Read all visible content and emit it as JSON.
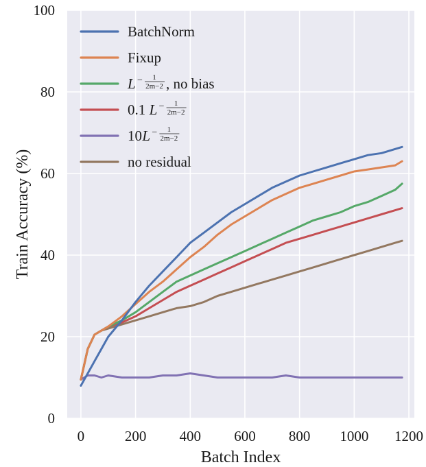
{
  "chart_data": {
    "type": "line",
    "title": "",
    "xlabel": "Batch Index",
    "ylabel": "Train Accuracy (%)",
    "xlim": [
      -50,
      1220
    ],
    "ylim": [
      0,
      100
    ],
    "x_ticks": [
      "0",
      "200",
      "400",
      "600",
      "800",
      "1000",
      "1200"
    ],
    "y_ticks": [
      "0",
      "20",
      "40",
      "60",
      "80",
      "100"
    ],
    "grid": true,
    "legend_position": "top-left",
    "background": "#eaeaf2",
    "series": [
      {
        "name": "BatchNorm",
        "color": "#4c72b0",
        "x": [
          0,
          25,
          50,
          75,
          100,
          150,
          200,
          250,
          300,
          350,
          400,
          450,
          500,
          550,
          600,
          650,
          700,
          750,
          800,
          850,
          900,
          950,
          1000,
          1050,
          1100,
          1150,
          1175
        ],
        "y": [
          8,
          11,
          14,
          17,
          20,
          24,
          28.5,
          32.5,
          36,
          39.5,
          43,
          45.5,
          48,
          50.5,
          52.5,
          54.5,
          56.5,
          58,
          59.5,
          60.5,
          61.5,
          62.5,
          63.5,
          64.5,
          65,
          66,
          66.5
        ]
      },
      {
        "name": "Fixup",
        "color": "#dd8452",
        "x": [
          0,
          25,
          50,
          75,
          100,
          150,
          200,
          250,
          300,
          350,
          400,
          450,
          500,
          550,
          600,
          650,
          700,
          750,
          800,
          850,
          900,
          950,
          1000,
          1050,
          1100,
          1150,
          1175
        ],
        "y": [
          9.5,
          17,
          20.5,
          21.5,
          22.5,
          25,
          28,
          31,
          33.5,
          36.5,
          39.5,
          42,
          45,
          47.5,
          49.5,
          51.5,
          53.5,
          55,
          56.5,
          57.5,
          58.5,
          59.5,
          60.5,
          61,
          61.5,
          62,
          63
        ]
      },
      {
        "name": "L^{-1/(2m-2)}, no bias",
        "color": "#55a868",
        "x": [
          0,
          25,
          50,
          75,
          100,
          150,
          200,
          250,
          300,
          350,
          400,
          450,
          500,
          550,
          600,
          650,
          700,
          750,
          800,
          850,
          900,
          950,
          1000,
          1050,
          1100,
          1150,
          1175
        ],
        "y": [
          9.5,
          17,
          20.5,
          21.5,
          22.5,
          24,
          26,
          28.5,
          31,
          33.5,
          35,
          36.5,
          38,
          39.5,
          41,
          42.5,
          44,
          45.5,
          47,
          48.5,
          49.5,
          50.5,
          52,
          53,
          54.5,
          56,
          57.5
        ]
      },
      {
        "name": "0.1L^{-1/(2m-2)}",
        "color": "#c44e52",
        "x": [
          0,
          25,
          50,
          75,
          100,
          150,
          200,
          250,
          300,
          350,
          400,
          450,
          500,
          550,
          600,
          650,
          700,
          750,
          800,
          850,
          900,
          950,
          1000,
          1050,
          1100,
          1150,
          1175
        ],
        "y": [
          9.5,
          17,
          20.5,
          21.5,
          22.5,
          23.5,
          25,
          27,
          29,
          31,
          32.5,
          34,
          35.5,
          37,
          38.5,
          40,
          41.5,
          43,
          44,
          45,
          46,
          47,
          48,
          49,
          50,
          51,
          51.5
        ]
      },
      {
        "name": "10L^{-1/(2m-2)}",
        "color": "#8172b3",
        "x": [
          0,
          25,
          50,
          75,
          100,
          150,
          200,
          250,
          300,
          350,
          400,
          450,
          500,
          550,
          600,
          650,
          700,
          750,
          800,
          850,
          900,
          950,
          1000,
          1050,
          1100,
          1150,
          1175
        ],
        "y": [
          9.5,
          10.5,
          10.5,
          10,
          10.5,
          10,
          10,
          10,
          10.5,
          10.5,
          11,
          10.5,
          10,
          10,
          10,
          10,
          10,
          10.5,
          10,
          10,
          10,
          10,
          10,
          10,
          10,
          10,
          10
        ]
      },
      {
        "name": "no residual",
        "color": "#937860",
        "x": [
          0,
          25,
          50,
          75,
          100,
          150,
          200,
          250,
          300,
          350,
          400,
          450,
          500,
          550,
          600,
          650,
          700,
          750,
          800,
          850,
          900,
          950,
          1000,
          1050,
          1100,
          1150,
          1175
        ],
        "y": [
          9.5,
          17,
          20.5,
          21.5,
          22,
          23,
          24,
          25,
          26,
          27,
          27.5,
          28.5,
          30,
          31,
          32,
          33,
          34,
          35,
          36,
          37,
          38,
          39,
          40,
          41,
          42,
          43,
          43.5
        ]
      }
    ]
  }
}
